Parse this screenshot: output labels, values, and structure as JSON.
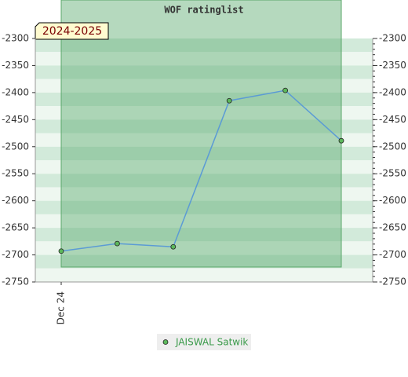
{
  "chart_data": {
    "type": "line",
    "title": "WOF ratinglist",
    "categories": [
      "Dec 24",
      null,
      null,
      null,
      null,
      null
    ],
    "series": [
      {
        "name": "JAISWAL Satwik",
        "color": "#5cb85c",
        "line_color": "#5b9bd5",
        "values": [
          -2693,
          -2679,
          -2685,
          -2415,
          -2396,
          -2489
        ]
      }
    ],
    "annotation": "2024-2025",
    "ylim": [
      -2750,
      -2300
    ],
    "yticks": [
      -2300,
      -2350,
      -2400,
      -2450,
      -2500,
      -2550,
      -2600,
      -2650,
      -2700,
      -2750
    ],
    "legend": "bottom"
  }
}
